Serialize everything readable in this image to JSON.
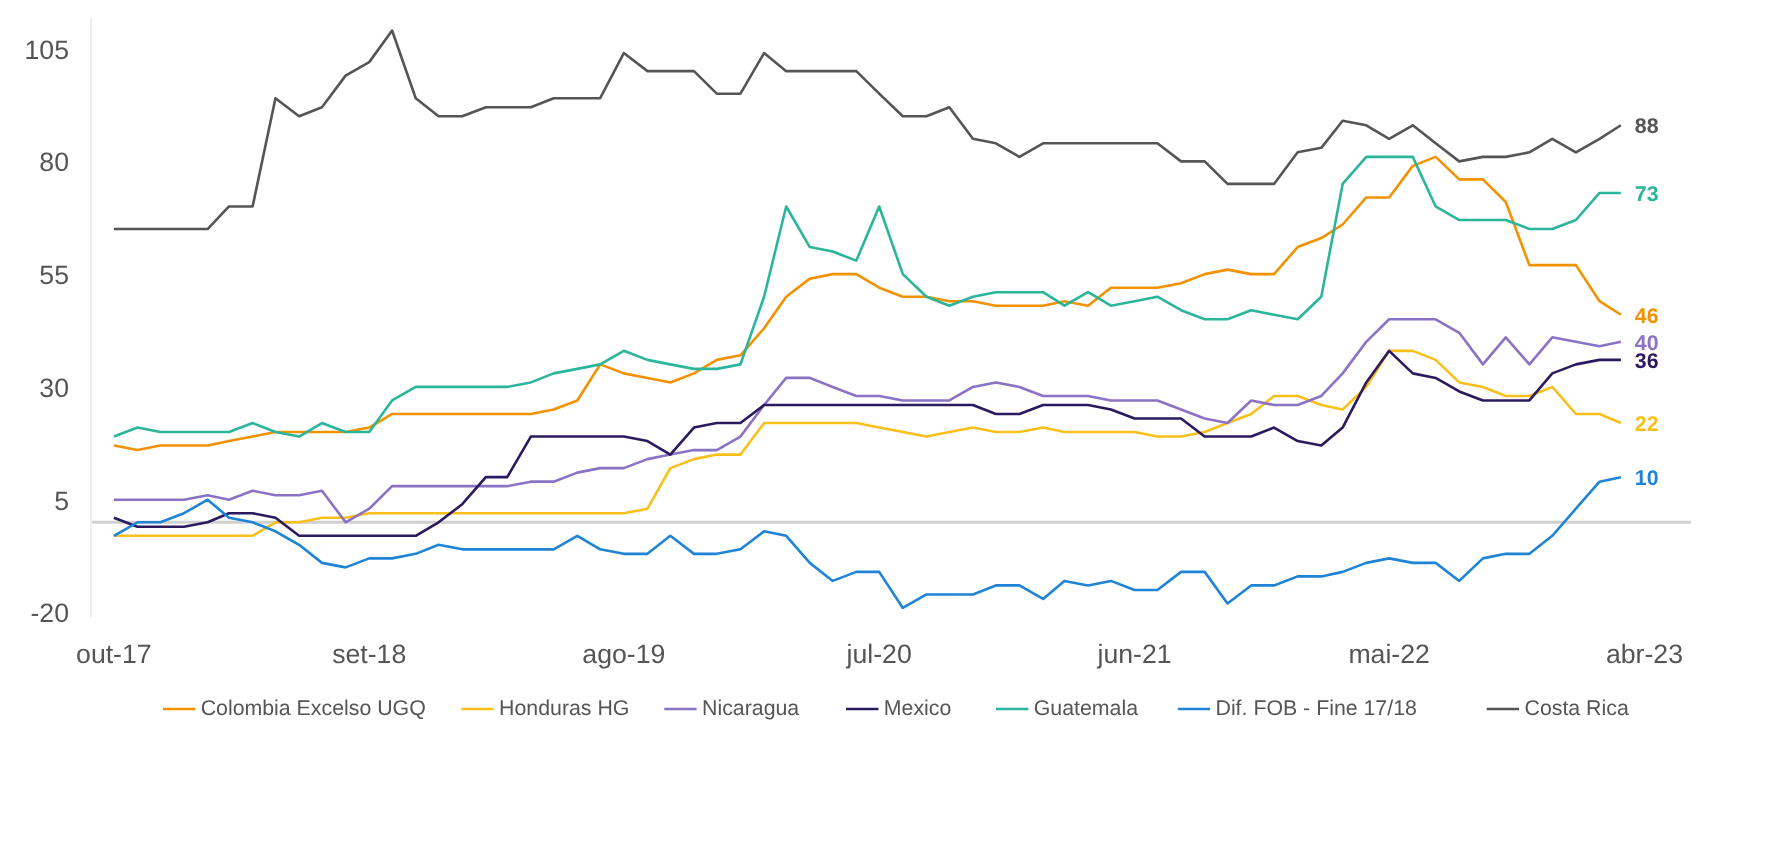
{
  "chart_data": {
    "type": "line",
    "x": [
      "2017-10",
      "2017-11",
      "2017-12",
      "2018-01",
      "2018-02",
      "2018-03",
      "2018-04",
      "2018-05",
      "2018-06",
      "2018-07",
      "2018-08",
      "2018-09",
      "2018-10",
      "2018-11",
      "2018-12",
      "2019-01",
      "2019-02",
      "2019-03",
      "2019-04",
      "2019-05",
      "2019-06",
      "2019-07",
      "2019-08",
      "2019-09",
      "2019-10",
      "2019-11",
      "2019-12",
      "2020-01",
      "2020-02",
      "2020-03",
      "2020-04",
      "2020-05",
      "2020-06",
      "2020-07",
      "2020-08",
      "2020-09",
      "2020-10",
      "2020-11",
      "2020-12",
      "2021-01",
      "2021-02",
      "2021-03",
      "2021-04",
      "2021-05",
      "2021-06",
      "2021-07",
      "2021-08",
      "2021-09",
      "2021-10",
      "2021-11",
      "2021-12",
      "2022-01",
      "2022-02",
      "2022-03",
      "2022-04",
      "2022-05",
      "2022-06",
      "2022-07",
      "2022-08",
      "2022-09",
      "2022-10",
      "2022-11",
      "2022-12",
      "2023-01",
      "2023-02",
      "2023-03"
    ],
    "series": [
      {
        "name": "Colombia Excelso UGQ",
        "color": "#f39200",
        "values": [
          17,
          16,
          17,
          17,
          17,
          18,
          19,
          20,
          20,
          20,
          20,
          21,
          24,
          24,
          24,
          24,
          24,
          24,
          24,
          25,
          27,
          35,
          33,
          32,
          31,
          33,
          36,
          37,
          43,
          50,
          54,
          55,
          55,
          52,
          50,
          50,
          49,
          49,
          48,
          48,
          48,
          49,
          48,
          52,
          52,
          52,
          53,
          55,
          56,
          55,
          55,
          61,
          63,
          66,
          72,
          72,
          79,
          81,
          76,
          76,
          71,
          57,
          57,
          57,
          49,
          46
        ],
        "value_labels": [
          null,
          null,
          null,
          null,
          null,
          null,
          null,
          null,
          null,
          null,
          null,
          null,
          null,
          null,
          null,
          null,
          null,
          null,
          null,
          null,
          null,
          null,
          null,
          null,
          null,
          null,
          null,
          null,
          null,
          null,
          null,
          null,
          null,
          null,
          null,
          null,
          null,
          null,
          null,
          null,
          null,
          null,
          null,
          null,
          null,
          null,
          null,
          null,
          null,
          null,
          null,
          null,
          null,
          null,
          null,
          null,
          null,
          null,
          null,
          null,
          null,
          null,
          null,
          null,
          null,
          "46"
        ]
      },
      {
        "name": "Honduras HG",
        "color": "#f9c01c",
        "values": [
          -3,
          -3,
          -3,
          -3,
          -3,
          -3,
          -3,
          0,
          0,
          1,
          1,
          2,
          2,
          2,
          2,
          2,
          2,
          2,
          2,
          2,
          2,
          2,
          2,
          3,
          12,
          14,
          15,
          15,
          22,
          22,
          22,
          22,
          22,
          21,
          20,
          19,
          20,
          21,
          20,
          20,
          21,
          20,
          20,
          20,
          20,
          19,
          19,
          20,
          22,
          24,
          28,
          28,
          26,
          25,
          30,
          38,
          38,
          36,
          31,
          30,
          28,
          28,
          30,
          24,
          24,
          22
        ],
        "value_labels": [
          null,
          null,
          null,
          null,
          null,
          null,
          null,
          null,
          null,
          null,
          null,
          null,
          null,
          null,
          null,
          null,
          null,
          null,
          null,
          null,
          null,
          null,
          null,
          null,
          null,
          null,
          null,
          null,
          null,
          null,
          null,
          null,
          null,
          null,
          null,
          null,
          null,
          null,
          null,
          null,
          null,
          null,
          null,
          null,
          null,
          null,
          null,
          null,
          null,
          null,
          null,
          null,
          null,
          null,
          null,
          null,
          null,
          null,
          null,
          null,
          null,
          null,
          null,
          null,
          null,
          "22"
        ]
      },
      {
        "name": "Nicaragua",
        "color": "#8a72c4",
        "values": [
          5,
          5,
          5,
          5,
          6,
          5,
          7,
          6,
          6,
          7,
          0,
          3,
          8,
          8,
          8,
          8,
          8,
          8,
          9,
          9,
          11,
          12,
          12,
          14,
          15,
          16,
          16,
          19,
          26,
          32,
          32,
          30,
          28,
          28,
          27,
          27,
          27,
          30,
          31,
          30,
          28,
          28,
          28,
          27,
          27,
          27,
          25,
          23,
          22,
          27,
          26,
          26,
          28,
          33,
          40,
          45,
          45,
          45,
          42,
          35,
          41,
          35,
          41,
          40,
          39,
          40
        ],
        "value_labels": [
          null,
          null,
          null,
          null,
          null,
          null,
          null,
          null,
          null,
          null,
          null,
          null,
          null,
          null,
          null,
          null,
          null,
          null,
          null,
          null,
          null,
          null,
          null,
          null,
          null,
          null,
          null,
          null,
          null,
          null,
          null,
          null,
          null,
          null,
          null,
          null,
          null,
          null,
          null,
          null,
          null,
          null,
          null,
          null,
          null,
          null,
          null,
          null,
          null,
          null,
          null,
          null,
          null,
          null,
          null,
          null,
          null,
          null,
          null,
          null,
          null,
          null,
          null,
          null,
          null,
          "40"
        ]
      },
      {
        "name": "Mexico",
        "color": "#2b1a5e",
        "values": [
          1,
          -1,
          -1,
          -1,
          0,
          2,
          2,
          1,
          -3,
          -3,
          -3,
          -3,
          -3,
          -3,
          0,
          4,
          10,
          10,
          19,
          19,
          19,
          19,
          19,
          18,
          15,
          21,
          22,
          22,
          26,
          26,
          26,
          26,
          26,
          26,
          26,
          26,
          26,
          26,
          24,
          24,
          26,
          26,
          26,
          25,
          23,
          23,
          23,
          19,
          19,
          19,
          21,
          18,
          17,
          21,
          31,
          38,
          33,
          32,
          29,
          27,
          27,
          27,
          33,
          35,
          36,
          36
        ],
        "value_labels": [
          null,
          null,
          null,
          null,
          null,
          null,
          null,
          null,
          null,
          null,
          null,
          null,
          null,
          null,
          null,
          null,
          null,
          null,
          null,
          null,
          null,
          null,
          null,
          null,
          null,
          null,
          null,
          null,
          null,
          null,
          null,
          null,
          null,
          null,
          null,
          null,
          null,
          null,
          null,
          null,
          null,
          null,
          null,
          null,
          null,
          null,
          null,
          null,
          null,
          null,
          null,
          null,
          null,
          null,
          null,
          null,
          null,
          null,
          null,
          null,
          null,
          null,
          null,
          null,
          null,
          "36"
        ]
      },
      {
        "name": "Guatemala",
        "color": "#2bb59a",
        "values": [
          19,
          21,
          20,
          20,
          20,
          20,
          22,
          20,
          19,
          22,
          20,
          20,
          27,
          30,
          30,
          30,
          30,
          30,
          31,
          33,
          34,
          35,
          38,
          36,
          35,
          34,
          34,
          35,
          50,
          70,
          61,
          60,
          58,
          70,
          55,
          50,
          48,
          50,
          51,
          51,
          51,
          48,
          51,
          48,
          49,
          50,
          47,
          45,
          45,
          47,
          46,
          45,
          50,
          75,
          81,
          81,
          81,
          70,
          67,
          67,
          67,
          65,
          65,
          67,
          73,
          73
        ],
        "value_labels": [
          null,
          null,
          null,
          null,
          null,
          null,
          null,
          null,
          null,
          null,
          null,
          null,
          null,
          null,
          null,
          null,
          null,
          null,
          null,
          null,
          null,
          null,
          null,
          null,
          null,
          null,
          null,
          null,
          null,
          null,
          null,
          null,
          null,
          null,
          null,
          null,
          null,
          null,
          null,
          null,
          null,
          null,
          null,
          null,
          null,
          null,
          null,
          null,
          null,
          null,
          null,
          null,
          null,
          null,
          null,
          null,
          null,
          null,
          null,
          null,
          null,
          null,
          null,
          null,
          null,
          "73"
        ]
      },
      {
        "name": "Dif. FOB - Fine 17/18",
        "color": "#1f84d6",
        "values": [
          -3,
          0,
          0,
          2,
          5,
          1,
          0,
          -2,
          -5,
          -9,
          -10,
          -8,
          -8,
          -7,
          -5,
          -6,
          -6,
          -6,
          -6,
          -6,
          -3,
          -6,
          -7,
          -7,
          -3,
          -7,
          -7,
          -6,
          -2,
          -3,
          -9,
          -13,
          -11,
          -11,
          -19,
          -16,
          -16,
          -16,
          -14,
          -14,
          -17,
          -13,
          -14,
          -13,
          -15,
          -15,
          -11,
          -11,
          -18,
          -14,
          -14,
          -12,
          -12,
          -11,
          -9,
          -8,
          -9,
          -9,
          -13,
          -8,
          -7,
          -7,
          -3,
          3,
          9,
          10
        ],
        "value_labels": [
          null,
          null,
          null,
          null,
          null,
          null,
          null,
          null,
          null,
          null,
          null,
          null,
          null,
          null,
          null,
          null,
          null,
          null,
          null,
          null,
          null,
          null,
          null,
          null,
          null,
          null,
          null,
          null,
          null,
          null,
          null,
          null,
          null,
          null,
          null,
          null,
          null,
          null,
          null,
          null,
          null,
          null,
          null,
          null,
          null,
          null,
          null,
          null,
          null,
          null,
          null,
          null,
          null,
          null,
          null,
          null,
          null,
          null,
          null,
          null,
          null,
          null,
          null,
          null,
          null,
          "10"
        ]
      },
      {
        "name": "Costa Rica",
        "color": "#555555",
        "values": [
          65,
          65,
          65,
          65,
          65,
          70,
          70,
          94,
          90,
          92,
          99,
          102,
          109,
          94,
          90,
          90,
          92,
          92,
          92,
          94,
          94,
          94,
          104,
          100,
          100,
          100,
          95,
          95,
          104,
          100,
          100,
          100,
          100,
          95,
          90,
          90,
          92,
          85,
          84,
          81,
          84,
          84,
          84,
          84,
          84,
          84,
          80,
          80,
          75,
          75,
          75,
          82,
          83,
          89,
          88,
          85,
          88,
          84,
          80,
          81,
          81,
          82,
          85,
          82,
          85,
          88
        ],
        "value_labels": [
          null,
          null,
          null,
          null,
          null,
          null,
          null,
          null,
          null,
          null,
          null,
          null,
          null,
          null,
          null,
          null,
          null,
          null,
          null,
          null,
          null,
          null,
          null,
          null,
          null,
          null,
          null,
          null,
          null,
          null,
          null,
          null,
          null,
          null,
          null,
          null,
          null,
          null,
          null,
          null,
          null,
          null,
          null,
          null,
          null,
          null,
          null,
          null,
          null,
          null,
          null,
          null,
          null,
          null,
          null,
          null,
          null,
          null,
          null,
          null,
          null,
          null,
          null,
          null,
          null,
          "88"
        ]
      }
    ],
    "xlim": [
      "2017-09",
      "2023-06"
    ],
    "xticks": [
      {
        "value": "2017-10",
        "label": "out-17"
      },
      {
        "value": "2018-09",
        "label": "set-18"
      },
      {
        "value": "2019-08",
        "label": "ago-19"
      },
      {
        "value": "2020-07",
        "label": "jul-20"
      },
      {
        "value": "2021-06",
        "label": "jun-21"
      },
      {
        "value": "2022-05",
        "label": "mai-22"
      },
      {
        "value": "2023-04",
        "label": "abr-23"
      }
    ],
    "ylim": [
      -21,
      112
    ],
    "yticks": [
      -20,
      5,
      30,
      55,
      80,
      105
    ],
    "ref_lines": [
      {
        "axis": "y",
        "value": 0,
        "color": "#d0d0d0"
      }
    ],
    "grid": false,
    "legend": "bottom",
    "line_style": "solid"
  }
}
